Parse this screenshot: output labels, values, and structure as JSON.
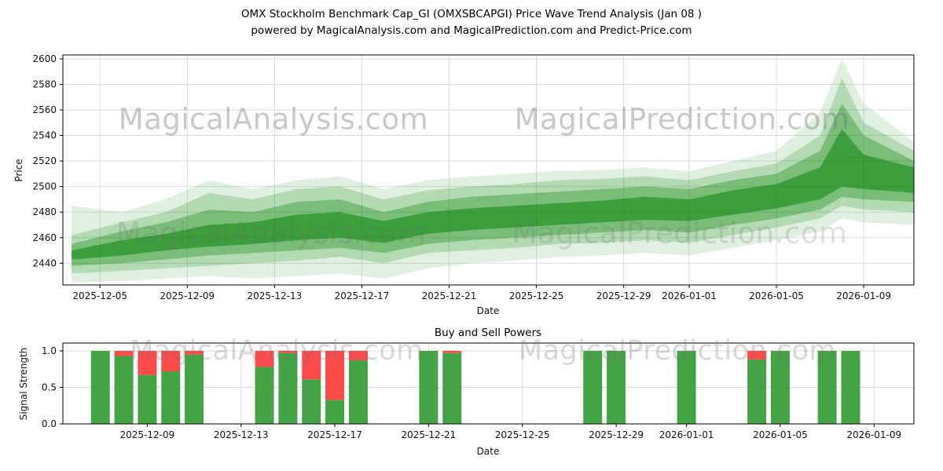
{
  "title": {
    "line1": "OMX Stockholm Benchmark Cap_GI (OMXSBCAPGI) Price Wave Trend Analysis (Jan 08 )",
    "line2": "powered by MagicalAnalysis.com and MagicalPrediction.com and Predict-Price.com"
  },
  "watermarks": {
    "analysis": "MagicalAnalysis.com",
    "prediction": "MagicalPrediction.com"
  },
  "colors": {
    "band_green": "#008000",
    "bar_green": "#44a344",
    "bar_red": "#fd4b4b",
    "grid": "#d9d9d9",
    "axis": "#000000",
    "tick_text": "#111111"
  },
  "chart_data": [
    {
      "type": "area",
      "title": "",
      "xlabel": "Date",
      "ylabel": "Price",
      "ylim": [
        2423,
        2603
      ],
      "xlim_days": [
        -0.7,
        38.3
      ],
      "x_start_date": "2025-12-04",
      "grid": true,
      "yticks": [
        2440,
        2460,
        2480,
        2500,
        2520,
        2540,
        2560,
        2580,
        2600
      ],
      "xticks": [
        {
          "day": 1,
          "label": "2025-12-05"
        },
        {
          "day": 5,
          "label": "2025-12-09"
        },
        {
          "day": 9,
          "label": "2025-12-13"
        },
        {
          "day": 13,
          "label": "2025-12-17"
        },
        {
          "day": 17,
          "label": "2025-12-21"
        },
        {
          "day": 21,
          "label": "2025-12-25"
        },
        {
          "day": 25,
          "label": "2025-12-29"
        },
        {
          "day": 28,
          "label": "2026-01-01"
        },
        {
          "day": 32,
          "label": "2026-01-05"
        },
        {
          "day": 36,
          "label": "2026-01-09"
        }
      ],
      "x_days": [
        -0.3,
        2,
        4,
        6,
        8,
        10,
        12,
        14,
        16,
        18,
        20,
        22,
        24,
        26,
        28,
        30,
        32,
        34,
        35,
        36,
        38.3
      ],
      "bands": [
        {
          "alpha": 0.12,
          "lo": [
            2425,
            2426,
            2428,
            2430,
            2428,
            2430,
            2432,
            2428,
            2436,
            2440,
            2442,
            2445,
            2446,
            2448,
            2446,
            2452,
            2458,
            2465,
            2475,
            2472,
            2470
          ],
          "hi": [
            2485,
            2480,
            2490,
            2505,
            2498,
            2505,
            2508,
            2498,
            2505,
            2508,
            2510,
            2512,
            2513,
            2515,
            2512,
            2520,
            2528,
            2558,
            2600,
            2565,
            2535
          ]
        },
        {
          "alpha": 0.2,
          "lo": [
            2432,
            2434,
            2436,
            2438,
            2440,
            2442,
            2445,
            2440,
            2448,
            2450,
            2452,
            2455,
            2456,
            2458,
            2456,
            2462,
            2468,
            2475,
            2485,
            2482,
            2480
          ],
          "hi": [
            2462,
            2472,
            2480,
            2495,
            2490,
            2498,
            2500,
            2490,
            2497,
            2500,
            2502,
            2505,
            2506,
            2508,
            2505,
            2512,
            2518,
            2540,
            2585,
            2550,
            2528
          ]
        },
        {
          "alpha": 0.32,
          "lo": [
            2438,
            2440,
            2443,
            2446,
            2448,
            2450,
            2452,
            2448,
            2455,
            2458,
            2460,
            2462,
            2464,
            2466,
            2464,
            2470,
            2475,
            2482,
            2492,
            2490,
            2488
          ],
          "hi": [
            2455,
            2465,
            2472,
            2482,
            2480,
            2488,
            2490,
            2480,
            2488,
            2492,
            2494,
            2496,
            2498,
            2500,
            2498,
            2505,
            2510,
            2528,
            2565,
            2540,
            2520
          ]
        },
        {
          "alpha": 0.5,
          "lo": [
            2443,
            2446,
            2450,
            2453,
            2455,
            2458,
            2460,
            2456,
            2463,
            2466,
            2468,
            2470,
            2472,
            2474,
            2473,
            2478,
            2483,
            2490,
            2500,
            2498,
            2495
          ],
          "hi": [
            2450,
            2458,
            2463,
            2470,
            2472,
            2478,
            2480,
            2473,
            2480,
            2483,
            2485,
            2487,
            2489,
            2492,
            2490,
            2497,
            2502,
            2515,
            2545,
            2525,
            2515
          ]
        }
      ]
    },
    {
      "type": "bar",
      "title": "Buy and Sell Powers",
      "xlabel": "Date",
      "ylabel": "Signal Strength",
      "ylim": [
        0,
        1.107
      ],
      "xlim_days": [
        1.4,
        37.7
      ],
      "x_start_date": "2025-12-04",
      "grid": true,
      "yticks": [
        0,
        0.5,
        1
      ],
      "xticks": [
        {
          "day": 5,
          "label": "2025-12-09"
        },
        {
          "day": 9,
          "label": "2025-12-13"
        },
        {
          "day": 13,
          "label": "2025-12-17"
        },
        {
          "day": 17,
          "label": "2025-12-21"
        },
        {
          "day": 21,
          "label": "2025-12-25"
        },
        {
          "day": 25,
          "label": "2025-12-29"
        },
        {
          "day": 28,
          "label": "2026-01-01"
        },
        {
          "day": 32,
          "label": "2026-01-05"
        },
        {
          "day": 36,
          "label": "2026-01-09"
        }
      ],
      "bars": [
        {
          "date": "2025-12-07",
          "day": 3,
          "green": 1.0,
          "red": 0.0
        },
        {
          "date": "2025-12-08",
          "day": 4,
          "green": 0.93,
          "red": 0.07
        },
        {
          "date": "2025-12-09",
          "day": 5,
          "green": 0.67,
          "red": 0.33
        },
        {
          "date": "2025-12-10",
          "day": 6,
          "green": 0.72,
          "red": 0.28
        },
        {
          "date": "2025-12-11",
          "day": 7,
          "green": 0.95,
          "red": 0.05
        },
        {
          "date": "2025-12-14",
          "day": 10,
          "green": 0.78,
          "red": 0.22
        },
        {
          "date": "2025-12-15",
          "day": 11,
          "green": 0.97,
          "red": 0.03
        },
        {
          "date": "2025-12-16",
          "day": 12,
          "green": 0.61,
          "red": 0.39
        },
        {
          "date": "2025-12-17",
          "day": 13,
          "green": 0.33,
          "red": 0.67
        },
        {
          "date": "2025-12-18",
          "day": 14,
          "green": 0.87,
          "red": 0.13
        },
        {
          "date": "2025-12-21",
          "day": 17,
          "green": 1.0,
          "red": 0.0
        },
        {
          "date": "2025-12-22",
          "day": 18,
          "green": 0.97,
          "red": 0.03
        },
        {
          "date": "2025-12-28",
          "day": 24,
          "green": 1.0,
          "red": 0.0
        },
        {
          "date": "2025-12-29",
          "day": 25,
          "green": 1.0,
          "red": 0.0
        },
        {
          "date": "2026-01-01",
          "day": 28,
          "green": 1.0,
          "red": 0.0
        },
        {
          "date": "2026-01-04",
          "day": 31,
          "green": 0.88,
          "red": 0.12
        },
        {
          "date": "2026-01-05",
          "day": 32,
          "green": 1.0,
          "red": 0.0
        },
        {
          "date": "2026-01-07",
          "day": 34,
          "green": 1.0,
          "red": 0.0
        },
        {
          "date": "2026-01-08",
          "day": 35,
          "green": 1.0,
          "red": 0.0
        }
      ]
    }
  ]
}
